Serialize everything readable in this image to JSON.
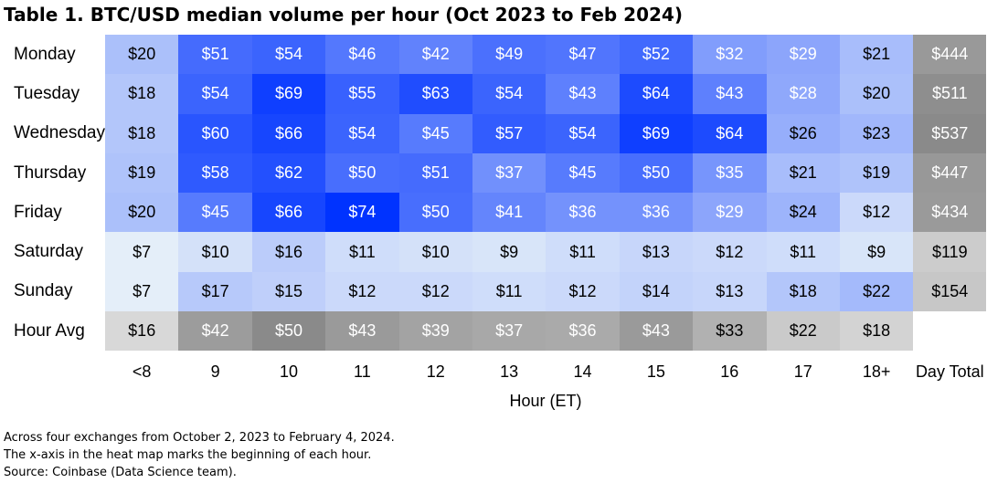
{
  "title": "Table 1. BTC/USD median volume per hour (Oct 2023 to Feb 2024)",
  "chart_data": {
    "type": "heatmap",
    "title": "Table 1. BTC/USD median volume per hour (Oct 2023 to Feb 2024)",
    "xlabel": "Hour (ET)",
    "x_categories": [
      "<8",
      "9",
      "10",
      "11",
      "12",
      "13",
      "14",
      "15",
      "16",
      "17",
      "18+"
    ],
    "total_column_label": "Day Total",
    "rows": [
      {
        "label": "Monday",
        "values": [
          20,
          51,
          54,
          46,
          42,
          49,
          47,
          52,
          32,
          29,
          21
        ],
        "total": 444
      },
      {
        "label": "Tuesday",
        "values": [
          18,
          54,
          69,
          55,
          63,
          54,
          43,
          64,
          43,
          28,
          20
        ],
        "total": 511
      },
      {
        "label": "Wednesday",
        "values": [
          18,
          60,
          66,
          54,
          45,
          57,
          54,
          69,
          64,
          26,
          23
        ],
        "total": 537
      },
      {
        "label": "Thursday",
        "values": [
          19,
          58,
          62,
          50,
          51,
          37,
          45,
          50,
          35,
          21,
          19
        ],
        "total": 447
      },
      {
        "label": "Friday",
        "values": [
          20,
          45,
          66,
          74,
          50,
          41,
          36,
          36,
          29,
          24,
          12
        ],
        "total": 434
      },
      {
        "label": "Saturday",
        "values": [
          7,
          10,
          16,
          11,
          10,
          9,
          11,
          13,
          12,
          11,
          9
        ],
        "total": 119
      },
      {
        "label": "Sunday",
        "values": [
          7,
          17,
          15,
          12,
          12,
          11,
          12,
          14,
          13,
          18,
          22
        ],
        "total": 154
      }
    ],
    "avg_row": {
      "label": "Hour Avg",
      "values": [
        16,
        42,
        50,
        43,
        39,
        37,
        36,
        43,
        33,
        22,
        18
      ]
    },
    "value_prefix": "$",
    "color_scale": {
      "low": "#e4eef9",
      "high": "#0033ff",
      "gray_low": "#d8d8d8",
      "gray_high": "#8a8a8a"
    }
  },
  "notes": [
    "Across four exchanges from October 2, 2023 to February 4, 2024.",
    "The x-axis in the heat map marks the beginning of each hour.",
    "Source: Coinbase (Data Science team)."
  ]
}
